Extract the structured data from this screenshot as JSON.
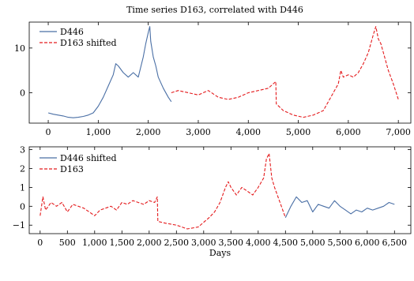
{
  "title": "Time series D163, correlated with D446",
  "colors": {
    "blue": "#4a6fa5",
    "red": "#e41a1c"
  },
  "chart_data": [
    {
      "type": "line",
      "xlim": [
        -380,
        7250
      ],
      "ylim": [
        -6.8,
        15.8
      ],
      "xticks": [
        0,
        1000,
        2000,
        3000,
        4000,
        5000,
        6000,
        7000
      ],
      "xtick_labels": [
        "0",
        "1,000",
        "2,000",
        "3,000",
        "4,000",
        "5,000",
        "6,000",
        "7,000"
      ],
      "yticks": [
        0,
        10
      ],
      "ytick_labels": [
        "0",
        "10"
      ],
      "legend_position": "top-left",
      "grid": false,
      "xlabel": "",
      "ylabel": "",
      "series": [
        {
          "name": "D446",
          "style": "solid",
          "color": "#4a6fa5",
          "x": [
            0,
            100,
            200,
            300,
            400,
            500,
            600,
            700,
            800,
            900,
            1000,
            1100,
            1200,
            1300,
            1350,
            1400,
            1500,
            1600,
            1700,
            1800,
            1900,
            1950,
            2000,
            2030,
            2050,
            2100,
            2150,
            2200,
            2300,
            2400,
            2460
          ],
          "y": [
            -4.5,
            -4.8,
            -5.0,
            -5.2,
            -5.5,
            -5.6,
            -5.5,
            -5.3,
            -5.0,
            -4.5,
            -3.0,
            -1.0,
            1.5,
            4.0,
            6.5,
            6.0,
            4.5,
            3.5,
            4.5,
            3.5,
            8.0,
            11.0,
            13.5,
            14.8,
            11.5,
            8.0,
            6.0,
            3.5,
            1.0,
            -1.0,
            -2.0
          ]
        },
        {
          "name": "D163 shifted",
          "style": "dashed",
          "color": "#e41a1c",
          "x": [
            2460,
            2600,
            2800,
            3000,
            3200,
            3400,
            3600,
            3800,
            4000,
            4200,
            4400,
            4550,
            4560,
            4700,
            4900,
            5100,
            5300,
            5500,
            5600,
            5700,
            5800,
            5850,
            5900,
            6000,
            6100,
            6200,
            6300,
            6400,
            6500,
            6550,
            6600,
            6650,
            6700,
            6800,
            6900,
            7000
          ],
          "y": [
            0.0,
            0.5,
            0.0,
            -0.5,
            0.5,
            -1.0,
            -1.5,
            -1.0,
            0.0,
            0.5,
            1.0,
            2.5,
            -2.5,
            -4.0,
            -5.0,
            -5.5,
            -5.0,
            -4.0,
            -2.0,
            0.0,
            2.0,
            5.0,
            3.5,
            4.0,
            3.5,
            4.5,
            6.5,
            9.0,
            13.0,
            14.8,
            12.0,
            11.0,
            9.0,
            5.0,
            2.0,
            -1.5
          ]
        }
      ]
    },
    {
      "type": "line",
      "xlim": [
        -200,
        6800
      ],
      "ylim": [
        -1.45,
        3.15
      ],
      "xticks": [
        0,
        500,
        1000,
        1500,
        2000,
        2500,
        3000,
        3500,
        4000,
        4500,
        5000,
        5500,
        6000,
        6500
      ],
      "xtick_labels": [
        "0",
        "500",
        "1,000",
        "1,500",
        "2,000",
        "2,500",
        "3,000",
        "3,500",
        "4,000",
        "4,500",
        "5,000",
        "5,500",
        "6,000",
        "6,500"
      ],
      "yticks": [
        -1,
        0,
        1,
        2,
        3
      ],
      "ytick_labels": [
        "−1",
        "0",
        "1",
        "2",
        "3"
      ],
      "xlabel": "Days",
      "ylabel": "",
      "legend_position": "top-left",
      "grid": false,
      "series": [
        {
          "name": "D446 shifted",
          "style": "solid",
          "color": "#4a6fa5",
          "x": [
            4500,
            4600,
            4700,
            4800,
            4900,
            5000,
            5100,
            5200,
            5300,
            5400,
            5500,
            5600,
            5700,
            5800,
            5900,
            6000,
            6100,
            6200,
            6300,
            6400,
            6500
          ],
          "y": [
            -0.6,
            0.0,
            0.5,
            0.2,
            0.3,
            -0.3,
            0.1,
            0.0,
            -0.1,
            0.3,
            0.0,
            -0.2,
            -0.4,
            -0.2,
            -0.3,
            -0.1,
            -0.2,
            -0.1,
            0.0,
            0.2,
            0.1
          ]
        },
        {
          "name": "D163",
          "style": "dashed",
          "color": "#e41a1c",
          "x": [
            0,
            50,
            100,
            200,
            300,
            400,
            500,
            600,
            700,
            800,
            900,
            1000,
            1100,
            1200,
            1300,
            1400,
            1500,
            1600,
            1700,
            1800,
            1900,
            2000,
            2100,
            2150,
            2160,
            2300,
            2500,
            2700,
            2900,
            3100,
            3200,
            3300,
            3400,
            3450,
            3500,
            3600,
            3700,
            3800,
            3900,
            4000,
            4100,
            4150,
            4200,
            4250,
            4300,
            4400,
            4500
          ],
          "y": [
            -0.5,
            0.5,
            -0.2,
            0.2,
            0.0,
            0.2,
            -0.3,
            0.1,
            0.0,
            -0.1,
            -0.3,
            -0.5,
            -0.2,
            -0.1,
            0.0,
            -0.2,
            0.2,
            0.1,
            0.3,
            0.2,
            0.1,
            0.3,
            0.2,
            0.5,
            -0.8,
            -0.9,
            -1.0,
            -1.2,
            -1.1,
            -0.6,
            -0.3,
            0.2,
            1.0,
            1.3,
            1.0,
            0.6,
            1.0,
            0.8,
            0.6,
            1.0,
            1.5,
            2.5,
            2.8,
            1.5,
            1.0,
            0.2,
            -0.6
          ]
        }
      ]
    }
  ]
}
